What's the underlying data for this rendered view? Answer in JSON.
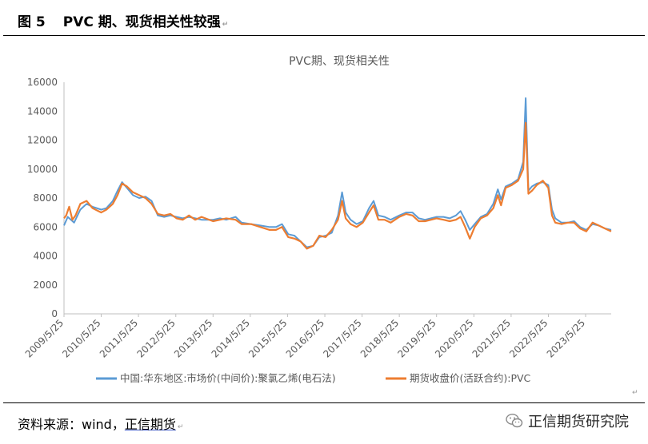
{
  "figure": {
    "number": "图 5",
    "title": "PVC 期、现货相关性较强"
  },
  "source": {
    "prefix": "资料来源：wind，",
    "org": "正信期货"
  },
  "brand": {
    "name": "正信期货研究院",
    "icon": "wechat-icon"
  },
  "colors": {
    "spot": "#5b9bd5",
    "futures": "#ed7d31",
    "axis": "#bfbfbf",
    "text": "#595959"
  },
  "chart_data": {
    "type": "line",
    "title": "PVC期、现货相关性",
    "ylim": [
      0,
      16000
    ],
    "yticks": [
      "0",
      "2000",
      "4000",
      "6000",
      "8000",
      "10000",
      "12000",
      "14000",
      "16000"
    ],
    "xlim": [
      "2009-05-25",
      "2024-01-31"
    ],
    "xticks": [
      "2009/5/25",
      "2010/5/25",
      "2011/5/25",
      "2012/5/25",
      "2013/5/25",
      "2014/5/25",
      "2015/5/25",
      "2016/5/25",
      "2017/5/25",
      "2018/5/25",
      "2019/5/25",
      "2020/5/25",
      "2021/5/25",
      "2022/5/25",
      "2023/5/25"
    ],
    "grid": false,
    "legend_position": "bottom",
    "series": [
      {
        "name": "中国:华东地区:市场价(中间价):聚氯乙烯(电石法)",
        "color": "#5b9bd5",
        "points": [
          [
            "2009-05-25",
            6100
          ],
          [
            "2009-07-01",
            6700
          ],
          [
            "2009-09-01",
            6300
          ],
          [
            "2009-11-01",
            7200
          ],
          [
            "2010-01-01",
            7600
          ],
          [
            "2010-03-01",
            7400
          ],
          [
            "2010-05-25",
            7200
          ],
          [
            "2010-07-15",
            7300
          ],
          [
            "2010-09-15",
            7800
          ],
          [
            "2010-11-01",
            8500
          ],
          [
            "2010-12-15",
            9100
          ],
          [
            "2011-02-01",
            8700
          ],
          [
            "2011-04-01",
            8200
          ],
          [
            "2011-06-01",
            8000
          ],
          [
            "2011-08-01",
            8100
          ],
          [
            "2011-10-01",
            7800
          ],
          [
            "2011-12-01",
            6800
          ],
          [
            "2012-02-01",
            6700
          ],
          [
            "2012-04-01",
            6800
          ],
          [
            "2012-06-01",
            6700
          ],
          [
            "2012-08-01",
            6600
          ],
          [
            "2012-10-01",
            6700
          ],
          [
            "2012-12-01",
            6600
          ],
          [
            "2013-02-01",
            6500
          ],
          [
            "2013-05-25",
            6500
          ],
          [
            "2013-08-01",
            6600
          ],
          [
            "2013-10-01",
            6500
          ],
          [
            "2014-01-01",
            6700
          ],
          [
            "2014-03-01",
            6300
          ],
          [
            "2014-06-01",
            6200
          ],
          [
            "2014-09-01",
            6100
          ],
          [
            "2014-12-01",
            6000
          ],
          [
            "2015-02-01",
            6000
          ],
          [
            "2015-04-01",
            6200
          ],
          [
            "2015-06-01",
            5500
          ],
          [
            "2015-08-01",
            5400
          ],
          [
            "2015-10-01",
            5000
          ],
          [
            "2015-12-01",
            4600
          ],
          [
            "2016-02-01",
            4700
          ],
          [
            "2016-04-01",
            5300
          ],
          [
            "2016-06-01",
            5400
          ],
          [
            "2016-08-01",
            5600
          ],
          [
            "2016-10-01",
            6800
          ],
          [
            "2016-11-10",
            8400
          ],
          [
            "2016-12-15",
            7000
          ],
          [
            "2017-02-01",
            6500
          ],
          [
            "2017-04-01",
            6200
          ],
          [
            "2017-06-01",
            6400
          ],
          [
            "2017-08-01",
            7300
          ],
          [
            "2017-09-15",
            7800
          ],
          [
            "2017-11-01",
            6800
          ],
          [
            "2018-01-01",
            6700
          ],
          [
            "2018-03-01",
            6500
          ],
          [
            "2018-05-25",
            6800
          ],
          [
            "2018-08-01",
            7000
          ],
          [
            "2018-10-01",
            7000
          ],
          [
            "2018-12-01",
            6600
          ],
          [
            "2019-02-01",
            6500
          ],
          [
            "2019-05-25",
            6700
          ],
          [
            "2019-08-01",
            6700
          ],
          [
            "2019-10-01",
            6600
          ],
          [
            "2019-12-01",
            6800
          ],
          [
            "2020-01-15",
            7100
          ],
          [
            "2020-03-01",
            6500
          ],
          [
            "2020-04-15",
            5800
          ],
          [
            "2020-06-01",
            6200
          ],
          [
            "2020-08-01",
            6700
          ],
          [
            "2020-10-01",
            6900
          ],
          [
            "2020-12-01",
            7600
          ],
          [
            "2021-01-15",
            8600
          ],
          [
            "2021-02-15",
            7900
          ],
          [
            "2021-04-01",
            8800
          ],
          [
            "2021-06-01",
            9000
          ],
          [
            "2021-08-01",
            9300
          ],
          [
            "2021-09-20",
            10500
          ],
          [
            "2021-10-15",
            14900
          ],
          [
            "2021-11-10",
            8500
          ],
          [
            "2021-12-15",
            8800
          ],
          [
            "2022-02-01",
            9000
          ],
          [
            "2022-04-01",
            9100
          ],
          [
            "2022-05-25",
            8900
          ],
          [
            "2022-06-30",
            7200
          ],
          [
            "2022-08-01",
            6600
          ],
          [
            "2022-10-01",
            6300
          ],
          [
            "2022-12-01",
            6300
          ],
          [
            "2023-02-01",
            6400
          ],
          [
            "2023-04-01",
            6000
          ],
          [
            "2023-06-01",
            5800
          ],
          [
            "2023-08-01",
            6200
          ],
          [
            "2023-10-01",
            6100
          ],
          [
            "2023-12-01",
            5900
          ],
          [
            "2024-01-31",
            5800
          ]
        ]
      },
      {
        "name": "期货收盘价(活跃合约):PVC",
        "color": "#ed7d31",
        "points": [
          [
            "2009-05-25",
            6600
          ],
          [
            "2009-06-15",
            6800
          ],
          [
            "2009-07-15",
            7400
          ],
          [
            "2009-08-15",
            6500
          ],
          [
            "2009-09-15",
            6800
          ],
          [
            "2009-11-01",
            7600
          ],
          [
            "2010-01-01",
            7800
          ],
          [
            "2010-03-01",
            7300
          ],
          [
            "2010-05-25",
            7000
          ],
          [
            "2010-07-15",
            7200
          ],
          [
            "2010-09-15",
            7600
          ],
          [
            "2010-11-01",
            8200
          ],
          [
            "2010-12-15",
            9000
          ],
          [
            "2011-02-01",
            8800
          ],
          [
            "2011-04-01",
            8400
          ],
          [
            "2011-06-01",
            8200
          ],
          [
            "2011-08-01",
            8000
          ],
          [
            "2011-10-01",
            7600
          ],
          [
            "2011-12-01",
            6900
          ],
          [
            "2012-02-01",
            6800
          ],
          [
            "2012-04-01",
            6900
          ],
          [
            "2012-06-01",
            6600
          ],
          [
            "2012-08-01",
            6500
          ],
          [
            "2012-10-01",
            6800
          ],
          [
            "2012-12-01",
            6500
          ],
          [
            "2013-02-01",
            6700
          ],
          [
            "2013-05-25",
            6400
          ],
          [
            "2013-08-01",
            6500
          ],
          [
            "2013-10-01",
            6600
          ],
          [
            "2014-01-01",
            6500
          ],
          [
            "2014-03-01",
            6200
          ],
          [
            "2014-06-01",
            6200
          ],
          [
            "2014-09-01",
            6000
          ],
          [
            "2014-12-01",
            5800
          ],
          [
            "2015-02-01",
            5800
          ],
          [
            "2015-04-01",
            6000
          ],
          [
            "2015-06-01",
            5300
          ],
          [
            "2015-08-01",
            5200
          ],
          [
            "2015-10-01",
            5000
          ],
          [
            "2015-12-01",
            4500
          ],
          [
            "2016-02-01",
            4700
          ],
          [
            "2016-04-01",
            5400
          ],
          [
            "2016-06-01",
            5300
          ],
          [
            "2016-08-01",
            5800
          ],
          [
            "2016-10-01",
            6500
          ],
          [
            "2016-11-10",
            7800
          ],
          [
            "2016-12-15",
            6600
          ],
          [
            "2017-02-01",
            6200
          ],
          [
            "2017-04-01",
            6000
          ],
          [
            "2017-06-01",
            6300
          ],
          [
            "2017-08-01",
            7000
          ],
          [
            "2017-09-15",
            7500
          ],
          [
            "2017-11-01",
            6500
          ],
          [
            "2018-01-01",
            6500
          ],
          [
            "2018-03-01",
            6300
          ],
          [
            "2018-05-25",
            6700
          ],
          [
            "2018-08-01",
            6900
          ],
          [
            "2018-10-01",
            6800
          ],
          [
            "2018-12-01",
            6400
          ],
          [
            "2019-02-01",
            6400
          ],
          [
            "2019-05-25",
            6600
          ],
          [
            "2019-08-01",
            6500
          ],
          [
            "2019-10-01",
            6400
          ],
          [
            "2019-12-01",
            6500
          ],
          [
            "2020-01-15",
            6700
          ],
          [
            "2020-03-01",
            6000
          ],
          [
            "2020-04-15",
            5200
          ],
          [
            "2020-06-01",
            6000
          ],
          [
            "2020-08-01",
            6600
          ],
          [
            "2020-10-01",
            6800
          ],
          [
            "2020-12-01",
            7300
          ],
          [
            "2021-01-15",
            8200
          ],
          [
            "2021-02-15",
            7500
          ],
          [
            "2021-04-01",
            8700
          ],
          [
            "2021-06-01",
            8900
          ],
          [
            "2021-08-01",
            9200
          ],
          [
            "2021-09-20",
            10000
          ],
          [
            "2021-10-15",
            13200
          ],
          [
            "2021-11-10",
            8300
          ],
          [
            "2021-12-15",
            8500
          ],
          [
            "2022-02-01",
            8900
          ],
          [
            "2022-04-01",
            9200
          ],
          [
            "2022-05-25",
            8700
          ],
          [
            "2022-06-30",
            6800
          ],
          [
            "2022-08-01",
            6300
          ],
          [
            "2022-10-01",
            6200
          ],
          [
            "2022-12-01",
            6300
          ],
          [
            "2023-02-01",
            6300
          ],
          [
            "2023-04-01",
            5900
          ],
          [
            "2023-06-01",
            5700
          ],
          [
            "2023-08-01",
            6300
          ],
          [
            "2023-10-01",
            6100
          ],
          [
            "2023-12-01",
            5900
          ],
          [
            "2024-01-31",
            5700
          ]
        ]
      }
    ]
  }
}
